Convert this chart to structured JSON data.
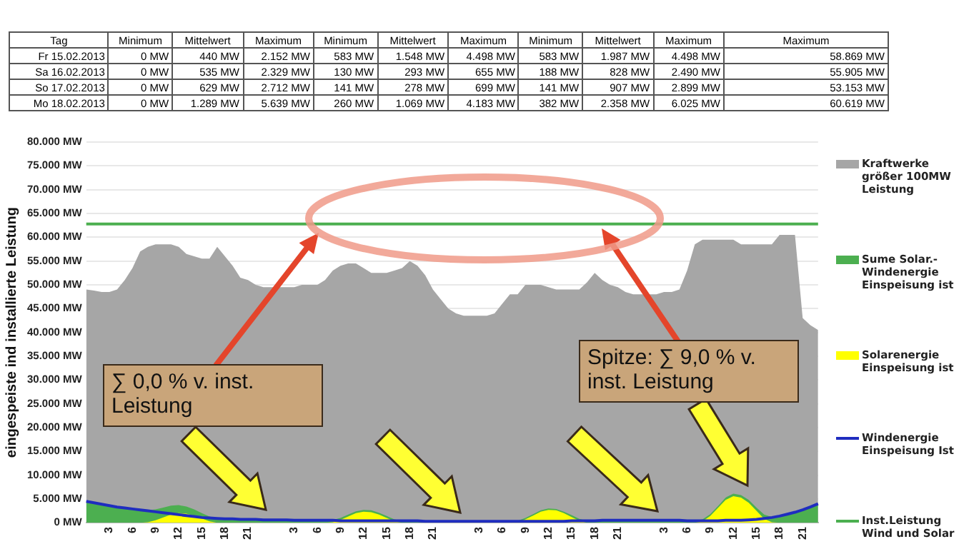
{
  "chart_data": {
    "type": "area",
    "ylabel": "eingespeiste ind installierte Leistung",
    "categories": [
      null,
      null,
      null,
      "3",
      null,
      null,
      "6",
      null,
      null,
      "9",
      null,
      null,
      "12",
      null,
      null,
      "15",
      null,
      null,
      "18",
      null,
      null,
      "21",
      null,
      null,
      null,
      null,
      null,
      "3",
      null,
      null,
      "6",
      null,
      null,
      "9",
      null,
      null,
      "12",
      null,
      null,
      "15",
      null,
      null,
      "18",
      null,
      null,
      "21",
      null,
      null,
      null,
      null,
      null,
      "3",
      null,
      null,
      "6",
      null,
      null,
      "9",
      null,
      null,
      "12",
      null,
      null,
      "15",
      null,
      null,
      "18",
      null,
      null,
      "21",
      null,
      null,
      null,
      null,
      null,
      "3",
      null,
      null,
      "6",
      null,
      null,
      "9",
      null,
      null,
      "12",
      null,
      null,
      "15",
      null,
      null,
      "18",
      null,
      null,
      "21",
      null,
      null
    ],
    "series": [
      {
        "name": "Kraftwerke größer 100MW Leistung",
        "type": "area",
        "color": "#a6a6a6",
        "values": [
          49000,
          48800,
          48500,
          48500,
          49000,
          51000,
          53500,
          57000,
          58000,
          58500,
          58500,
          58500,
          58000,
          56500,
          56000,
          55500,
          55500,
          58000,
          56000,
          54000,
          51500,
          51000,
          50000,
          49500,
          49500,
          null,
          49500,
          49500,
          50000,
          50000,
          50000,
          51000,
          53000,
          54000,
          54500,
          54500,
          53500,
          52500,
          52500,
          52500,
          53000,
          53500,
          55000,
          54000,
          52000,
          49000,
          47000,
          45000,
          44000,
          43500,
          43500,
          43500,
          43500,
          44000,
          46000,
          48000,
          48000,
          50000,
          50000,
          50000,
          49500,
          49000,
          49000,
          49000,
          49000,
          50500,
          52500,
          51000,
          50000,
          49500,
          48500,
          48000,
          48000,
          null,
          48000,
          48500,
          48500,
          49000,
          53000,
          58500,
          59500,
          59500,
          59500,
          59500,
          59500,
          58500,
          58500,
          58500,
          58500,
          58500,
          60500,
          60500,
          60500,
          43000,
          41500,
          40500
        ]
      },
      {
        "name": "Sume Solar.- Windenergie Einspeisung ist",
        "type": "area",
        "color": "#4caf50",
        "values": [
          4500,
          4200,
          3900,
          3600,
          3300,
          3100,
          2900,
          2700,
          2600,
          2800,
          3200,
          3600,
          3700,
          3400,
          2800,
          2000,
          1300,
          900,
          800,
          800,
          700,
          700,
          700,
          600,
          600,
          600,
          600,
          500,
          500,
          500,
          500,
          500,
          600,
          1000,
          1700,
          2400,
          2700,
          2600,
          2100,
          1400,
          700,
          400,
          400,
          400,
          300,
          300,
          300,
          300,
          300,
          300,
          300,
          300,
          300,
          300,
          300,
          300,
          400,
          1000,
          1800,
          2600,
          3000,
          2900,
          2300,
          1600,
          800,
          400,
          400,
          500,
          500,
          500,
          500,
          500,
          500,
          500,
          500,
          500,
          500,
          500,
          400,
          400,
          700,
          1800,
          3500,
          5300,
          6100,
          5800,
          4800,
          3200,
          1700,
          1200,
          1400,
          1800,
          2200,
          2700,
          3300,
          4000
        ]
      },
      {
        "name": "Solarenergie Einspeisung ist",
        "type": "area",
        "color": "#ffff00",
        "values": [
          0,
          0,
          0,
          0,
          0,
          0,
          0,
          0,
          100,
          500,
          1100,
          1700,
          2000,
          1900,
          1500,
          900,
          300,
          0,
          0,
          0,
          0,
          0,
          0,
          0,
          0,
          0,
          0,
          0,
          0,
          0,
          0,
          0,
          100,
          600,
          1300,
          2000,
          2300,
          2200,
          1700,
          1000,
          300,
          0,
          0,
          0,
          0,
          0,
          0,
          0,
          0,
          0,
          0,
          0,
          0,
          0,
          0,
          0,
          100,
          700,
          1500,
          2300,
          2700,
          2600,
          2000,
          1200,
          400,
          0,
          0,
          0,
          0,
          0,
          0,
          0,
          0,
          0,
          0,
          0,
          0,
          0,
          0,
          0,
          300,
          1400,
          3100,
          4800,
          5600,
          5300,
          4200,
          2500,
          800,
          100,
          0,
          0,
          0,
          0,
          0,
          0
        ]
      },
      {
        "name": "Windenergie Einspeisung Ist",
        "type": "line",
        "color": "#1f2dbf",
        "values": [
          4500,
          4200,
          3900,
          3600,
          3300,
          3100,
          2900,
          2700,
          2500,
          2300,
          2100,
          1900,
          1700,
          1500,
          1300,
          1100,
          1000,
          900,
          800,
          800,
          700,
          700,
          700,
          600,
          600,
          600,
          600,
          500,
          500,
          500,
          500,
          500,
          500,
          400,
          400,
          400,
          400,
          400,
          400,
          400,
          400,
          400,
          400,
          400,
          300,
          300,
          300,
          300,
          300,
          300,
          300,
          300,
          300,
          300,
          300,
          300,
          300,
          300,
          300,
          300,
          300,
          300,
          300,
          400,
          400,
          400,
          400,
          500,
          500,
          500,
          500,
          500,
          500,
          500,
          500,
          500,
          500,
          500,
          400,
          400,
          400,
          400,
          400,
          500,
          500,
          500,
          600,
          700,
          900,
          1100,
          1400,
          1800,
          2200,
          2700,
          3300,
          4000
        ]
      },
      {
        "name": "Inst.Leistung Wind und Solar",
        "type": "line",
        "color": "#4caf50",
        "values": [
          62800,
          62800,
          62800,
          62800,
          62800,
          62800,
          62800,
          62800,
          62800,
          62800,
          62800,
          62800,
          62800,
          62800,
          62800,
          62800,
          62800,
          62800,
          62800,
          62800,
          62800,
          62800,
          62800,
          62800,
          62800,
          62800,
          62800,
          62800,
          62800,
          62800,
          62800,
          62800,
          62800,
          62800,
          62800,
          62800,
          62800,
          62800,
          62800,
          62800,
          62800,
          62800,
          62800,
          62800,
          62800,
          62800,
          62800,
          62800,
          62800,
          62800,
          62800,
          62800,
          62800,
          62800,
          62800,
          62800,
          62800,
          62800,
          62800,
          62800,
          62800,
          62800,
          62800,
          62800,
          62800,
          62800,
          62800,
          62800,
          62800,
          62800,
          62800,
          62800,
          62800,
          62800,
          62800,
          62800,
          62800,
          62800,
          62800,
          62800,
          62800,
          62800,
          62800,
          62800,
          62800,
          62800,
          62800,
          62800,
          62800,
          62800,
          62800,
          62800,
          62800,
          62800,
          62800,
          62800
        ]
      }
    ],
    "ylim": [
      0,
      80000
    ],
    "yticks": [
      {
        "value": 0,
        "label": "0 MW"
      },
      {
        "value": 5000,
        "label": "5.000 MW"
      },
      {
        "value": 10000,
        "label": "10.000 MW"
      },
      {
        "value": 15000,
        "label": "15.000 MW"
      },
      {
        "value": 20000,
        "label": "20.000 MW"
      },
      {
        "value": 25000,
        "label": "25.000 MW"
      },
      {
        "value": 30000,
        "label": "30.000 MW"
      },
      {
        "value": 35000,
        "label": "35.000 MW"
      },
      {
        "value": 40000,
        "label": "40.000 MW"
      },
      {
        "value": 45000,
        "label": "45.000 MW"
      },
      {
        "value": 50000,
        "label": "50.000 MW"
      },
      {
        "value": 55000,
        "label": "55.000 MW"
      },
      {
        "value": 60000,
        "label": "60.000 MW"
      },
      {
        "value": 65000,
        "label": "65.000 MW"
      },
      {
        "value": 70000,
        "label": "70.000 MW"
      },
      {
        "value": 75000,
        "label": "75.000 MW"
      },
      {
        "value": 80000,
        "label": "80.000 MW"
      }
    ],
    "grid": "y",
    "legend": "right",
    "marker": "none",
    "annotations": [
      "Tag",
      "Minimum",
      "Mittelwert",
      "Maximum",
      "Minimum",
      "Mittelwert",
      "Maximum",
      "Minimum",
      "Mittelwert",
      "Maximum",
      "Maximum",
      "Fr 15.02.2013",
      "0 MW",
      "440 MW",
      "2.152 MW",
      "583 MW",
      "1.548 MW",
      "4.498 MW",
      "583 MW",
      "1.987 MW",
      "4.498 MW",
      "58.869 MW",
      "Sa 16.02.2013",
      "0 MW",
      "535 MW",
      "2.329 MW",
      "130 MW",
      "293 MW",
      "655 MW",
      "188 MW",
      "828 MW",
      "2.490 MW",
      "55.905 MW",
      "So 17.02.2013",
      "0 MW",
      "629 MW",
      "2.712 MW",
      "141 MW",
      "278 MW",
      "699 MW",
      "141 MW",
      "907 MW",
      "2.899 MW",
      "53.153 MW",
      "Mo 18.02.2013",
      "0 MW",
      "1.289 MW",
      "5.639 MW",
      "260 MW",
      "1.069 MW",
      "4.183 MW",
      "382 MW",
      "2.358 MW",
      "6.025 MW",
      "60.619 MW",
      "∑ 0,0 % v. inst. Leistung",
      "Spitze: ∑ 9,0 % v. inst. Leistung"
    ]
  }
}
